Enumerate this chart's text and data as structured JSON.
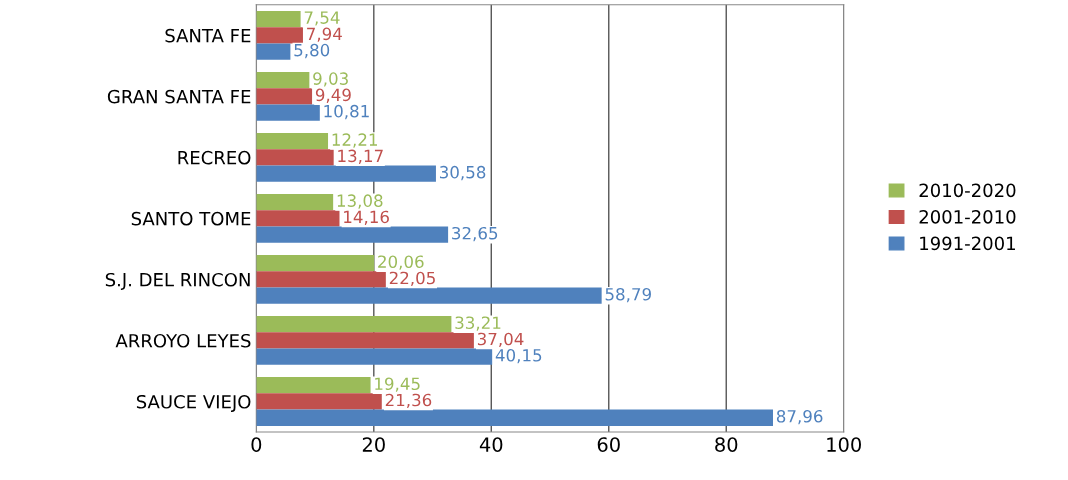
{
  "chart_data": {
    "type": "bar",
    "orientation": "horizontal",
    "categories": [
      "SANTA FE",
      "GRAN SANTA FE",
      "RECREO",
      "SANTO TOME",
      "S.J. DEL RINCON",
      "ARROYO LEYES",
      "SAUCE VIEJO"
    ],
    "series": [
      {
        "name": "2010-2020",
        "color": "#9bbb59",
        "values": [
          7.54,
          9.03,
          12.21,
          13.08,
          20.06,
          33.21,
          19.45
        ],
        "value_labels": [
          "7,54",
          "9,03",
          "12,21",
          "13,08",
          "20,06",
          "33,21",
          "19,45"
        ]
      },
      {
        "name": "2001-2010",
        "color": "#c0504d",
        "values": [
          7.94,
          9.49,
          13.17,
          14.16,
          22.05,
          37.04,
          21.36
        ],
        "value_labels": [
          "7,94",
          "9,49",
          "13,17",
          "14,16",
          "22,05",
          "37,04",
          "21,36"
        ]
      },
      {
        "name": "1991-2001",
        "color": "#4f81bd",
        "values": [
          5.8,
          10.81,
          30.58,
          32.65,
          58.79,
          40.15,
          87.96
        ],
        "value_labels": [
          "5,80",
          "10,81",
          "30,58",
          "32,65",
          "58,79",
          "40,15",
          "87,96"
        ]
      }
    ],
    "xlim": [
      0,
      100
    ],
    "xticks": [
      0,
      20,
      40,
      60,
      80,
      100
    ],
    "grid": "x",
    "legend": "right"
  }
}
